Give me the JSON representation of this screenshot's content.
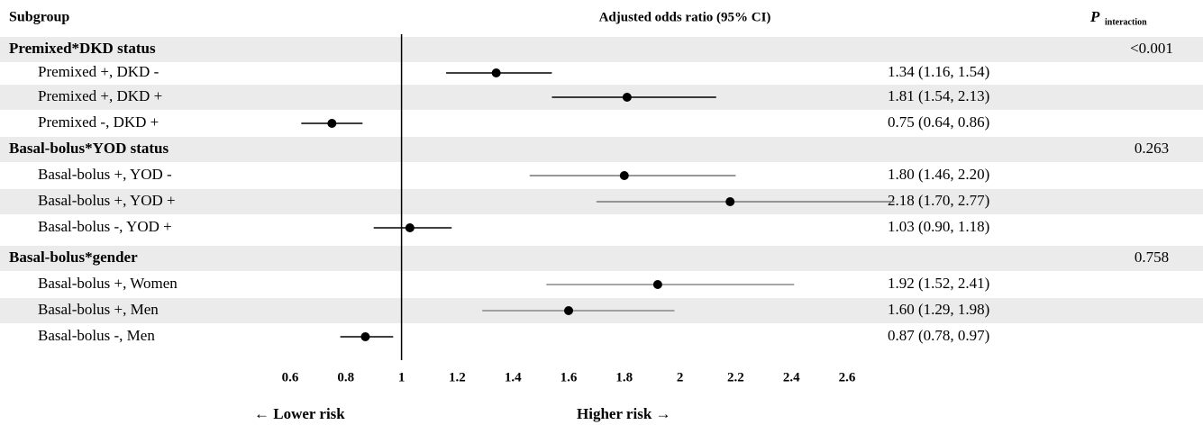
{
  "chart_data": {
    "type": "forest",
    "headers": {
      "subgroup": "Subgroup",
      "estimate": "Adjusted odds ratio (95% CI)",
      "p": "P",
      "p_sub": "interaction"
    },
    "groups": [
      {
        "name": "Premixed*DKD status",
        "p": "<0.001",
        "rows": [
          {
            "label": "Premixed +, DKD -",
            "or": 1.34,
            "lo": 1.16,
            "hi": 1.54,
            "ci_label": "1.34 (1.16, 1.54)",
            "color": "#000000"
          },
          {
            "label": "Premixed +, DKD +",
            "or": 1.81,
            "lo": 1.54,
            "hi": 2.13,
            "ci_label": "1.81 (1.54, 2.13)",
            "color": "#000000"
          },
          {
            "label": "Premixed -, DKD +",
            "or": 0.75,
            "lo": 0.64,
            "hi": 0.86,
            "ci_label": "0.75 (0.64, 0.86)",
            "color": "#000000"
          }
        ]
      },
      {
        "name": "Basal-bolus*YOD status",
        "p": "0.263",
        "rows": [
          {
            "label": "Basal-bolus +, YOD -",
            "or": 1.8,
            "lo": 1.46,
            "hi": 2.2,
            "ci_label": "1.80 (1.46, 2.20)",
            "color": "#777777"
          },
          {
            "label": "Basal-bolus +, YOD +",
            "or": 2.18,
            "lo": 1.7,
            "hi": 2.77,
            "ci_label": "2.18 (1.70, 2.77)",
            "color": "#777777"
          },
          {
            "label": "Basal-bolus -, YOD +",
            "or": 1.03,
            "lo": 0.9,
            "hi": 1.18,
            "ci_label": "1.03 (0.90, 1.18)",
            "color": "#000000"
          }
        ]
      },
      {
        "name": "Basal-bolus*gender",
        "p": "0.758",
        "rows": [
          {
            "label": "Basal-bolus +, Women",
            "or": 1.92,
            "lo": 1.52,
            "hi": 2.41,
            "ci_label": "1.92 (1.52, 2.41)",
            "color": "#888888"
          },
          {
            "label": "Basal-bolus +, Men",
            "or": 1.6,
            "lo": 1.29,
            "hi": 1.98,
            "ci_label": "1.60 (1.29, 1.98)",
            "color": "#888888"
          },
          {
            "label": "Basal-bolus -, Men",
            "or": 0.87,
            "lo": 0.78,
            "hi": 0.97,
            "ci_label": "0.87 (0.78, 0.97)",
            "color": "#000000"
          }
        ]
      }
    ],
    "xlim": [
      0.6,
      2.6
    ],
    "xticks": [
      0.6,
      0.8,
      1,
      1.2,
      1.4,
      1.6,
      1.8,
      2,
      2.2,
      2.4,
      2.6
    ],
    "ref_line": 1,
    "lower_label": "← Lower risk",
    "higher_label": "Higher risk →"
  }
}
